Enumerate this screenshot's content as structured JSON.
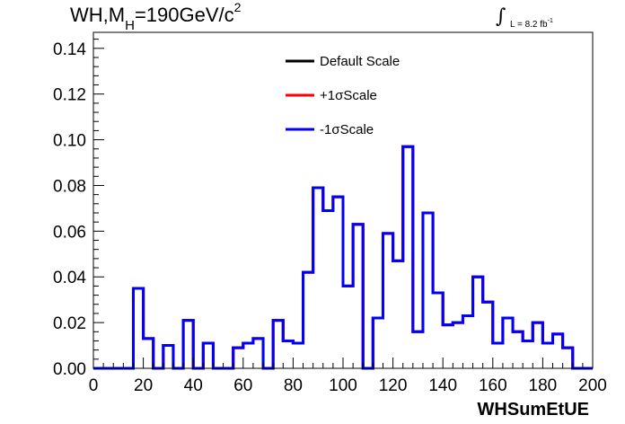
{
  "header": {
    "title_main": "WH,M",
    "title_sub": "H",
    "title_rest": "=190GeV/c",
    "title_sup": "2",
    "lumi_integral": "∫",
    "lumi_text": "L = 8.2 fb",
    "lumi_sup": "-1"
  },
  "colors": {
    "default": "#000000",
    "plus": "#ff0000",
    "minus": "#0000ff",
    "axis": "#000000"
  },
  "chart_data": {
    "type": "line",
    "title": "WH,MH=190GeV/c2",
    "xlabel": "WHSumEtUE",
    "ylabel": "",
    "xlim": [
      0,
      200
    ],
    "ylim": [
      0,
      0.147
    ],
    "x_ticks": [
      0,
      20,
      40,
      60,
      80,
      100,
      120,
      140,
      160,
      180,
      200
    ],
    "y_ticks": [
      "0.00",
      "0.02",
      "0.04",
      "0.06",
      "0.08",
      "0.10",
      "0.12",
      "0.14"
    ],
    "bin_edges": [
      0,
      4,
      8,
      12,
      16,
      20,
      24,
      28,
      32,
      36,
      40,
      44,
      48,
      52,
      56,
      60,
      64,
      68,
      72,
      76,
      80,
      84,
      88,
      92,
      96,
      100,
      104,
      108,
      112,
      116,
      120,
      124,
      128,
      132,
      136,
      140,
      144,
      148,
      152,
      156,
      160,
      164,
      168,
      172,
      176,
      180,
      184,
      188,
      192,
      196,
      200
    ],
    "series": [
      {
        "name": "Default Scale",
        "color": "#000000",
        "values": [
          0,
          0,
          0,
          0,
          0.035,
          0.013,
          0,
          0.01,
          0,
          0.021,
          0,
          0.011,
          0,
          0,
          0.009,
          0.011,
          0.013,
          0,
          0.021,
          0.012,
          0.011,
          0.042,
          0.079,
          0.069,
          0.075,
          0.036,
          0.063,
          0,
          0.022,
          0.059,
          0.047,
          0.097,
          0.016,
          0.068,
          0.033,
          0.019,
          0.02,
          0.023,
          0.04,
          0.029,
          0.011,
          0.022,
          0.016,
          0.012,
          0.02,
          0.011,
          0.015,
          0.009,
          0,
          0
        ]
      },
      {
        "name": "+1σScale",
        "color": "#ff0000",
        "values": [
          0,
          0,
          0,
          0,
          0.035,
          0.013,
          0,
          0.01,
          0,
          0.021,
          0,
          0.011,
          0,
          0,
          0.009,
          0.011,
          0.013,
          0,
          0.021,
          0.012,
          0.011,
          0.042,
          0.079,
          0.069,
          0.075,
          0.036,
          0.063,
          0,
          0.022,
          0.059,
          0.047,
          0.097,
          0.016,
          0.068,
          0.033,
          0.019,
          0.02,
          0.023,
          0.04,
          0.029,
          0.011,
          0.022,
          0.016,
          0.012,
          0.02,
          0.011,
          0.015,
          0.009,
          0,
          0
        ]
      },
      {
        "name": "-1σScale",
        "color": "#0000ff",
        "values": [
          0,
          0,
          0,
          0,
          0.035,
          0.013,
          0,
          0.01,
          0,
          0.021,
          0,
          0.011,
          0,
          0,
          0.009,
          0.011,
          0.013,
          0,
          0.021,
          0.012,
          0.011,
          0.042,
          0.079,
          0.069,
          0.075,
          0.036,
          0.063,
          0,
          0.022,
          0.059,
          0.047,
          0.097,
          0.016,
          0.068,
          0.033,
          0.019,
          0.02,
          0.023,
          0.04,
          0.029,
          0.011,
          0.022,
          0.016,
          0.012,
          0.02,
          0.011,
          0.015,
          0.009,
          0,
          0
        ]
      }
    ],
    "legend_position": "top-center",
    "grid": false
  }
}
